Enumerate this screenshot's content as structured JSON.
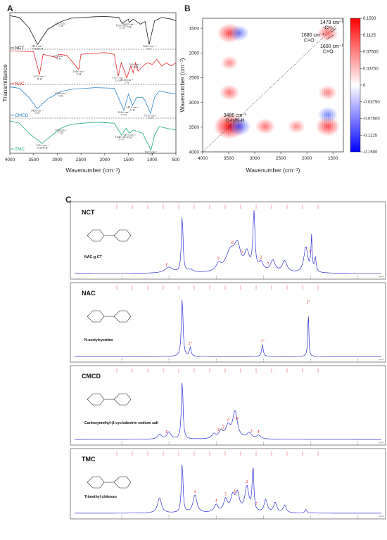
{
  "panels": {
    "A": "A",
    "B": "B",
    "C": "C"
  },
  "chart_data": [
    {
      "type": "line",
      "panel": "A",
      "xlabel": "Wavenumber (cm⁻¹)",
      "ylabel": "Transmittance",
      "xlim": [
        4000,
        500
      ],
      "x_ticks": [
        "4000",
        "3500",
        "3000",
        "2500",
        "2000",
        "1500",
        "1000",
        "500"
      ],
      "series": [
        {
          "name": "NCT",
          "color": "#1a1a1a",
          "points": [
            [
              4000,
              0.95
            ],
            [
              3800,
              0.9
            ],
            [
              3600,
              0.6
            ],
            [
              3415,
              0.1
            ],
            [
              3200,
              0.55
            ],
            [
              2921,
              0.78
            ],
            [
              2700,
              0.88
            ],
            [
              2200,
              0.92
            ],
            [
              2000,
              0.93
            ],
            [
              1700,
              0.9
            ],
            [
              1635,
              0.72
            ],
            [
              1500,
              0.85
            ],
            [
              1487,
              0.75
            ],
            [
              1400,
              0.85
            ],
            [
              1250,
              0.7
            ],
            [
              1150,
              0.78
            ],
            [
              1065,
              0.1
            ],
            [
              950,
              0.8
            ],
            [
              800,
              0.9
            ],
            [
              600,
              0.85
            ],
            [
              500,
              0.8
            ]
          ],
          "annotations": [
            {
              "x": 3415,
              "text": "3415 cm⁻¹ O-H/N-H"
            },
            {
              "x": 2921,
              "text": "2921 cm⁻¹ C-H"
            },
            {
              "x": 1635,
              "text": "1635 cm⁻¹ C=O"
            },
            {
              "x": 1487,
              "text": "1487 cm⁻¹ -CH₃"
            },
            {
              "x": 1065,
              "text": "1065 cm⁻¹ C-O"
            }
          ]
        },
        {
          "name": "NAC",
          "color": "#e8262a",
          "points": [
            [
              4000,
              0.95
            ],
            [
              3500,
              0.93
            ],
            [
              3376,
              0.25
            ],
            [
              3300,
              0.85
            ],
            [
              3000,
              0.75
            ],
            [
              2970,
              0.85
            ],
            [
              2800,
              0.82
            ],
            [
              2548,
              0.4
            ],
            [
              2500,
              0.85
            ],
            [
              2000,
              0.9
            ],
            [
              1800,
              0.85
            ],
            [
              1717,
              0.2
            ],
            [
              1650,
              0.6
            ],
            [
              1536,
              0.15
            ],
            [
              1450,
              0.5
            ],
            [
              1400,
              0.3
            ],
            [
              1350,
              0.6
            ],
            [
              1300,
              0.35
            ],
            [
              1200,
              0.5
            ],
            [
              1100,
              0.6
            ],
            [
              1000,
              0.55
            ],
            [
              900,
              0.7
            ],
            [
              800,
              0.5
            ],
            [
              700,
              0.6
            ],
            [
              600,
              0.5
            ],
            [
              500,
              0.6
            ]
          ],
          "annotations": [
            {
              "x": 3376,
              "text": "3376 cm⁻¹ N-H"
            },
            {
              "x": 2970,
              "text": "2970 cm⁻¹ O-H"
            },
            {
              "x": 2548,
              "text": "2548 cm⁻¹ S-H"
            },
            {
              "x": 1717,
              "text": "1717 cm⁻¹ C=O"
            },
            {
              "x": 1536,
              "text": "1536 cm⁻¹ C-N"
            },
            {
              "x": 1369,
              "text": "1369 cm⁻¹ C-OH"
            }
          ]
        },
        {
          "name": "CMCD",
          "color": "#2a83c8",
          "points": [
            [
              4000,
              0.92
            ],
            [
              3800,
              0.88
            ],
            [
              3600,
              0.6
            ],
            [
              3426,
              0.25
            ],
            [
              3200,
              0.55
            ],
            [
              2924,
              0.78
            ],
            [
              2700,
              0.85
            ],
            [
              2200,
              0.9
            ],
            [
              1800,
              0.88
            ],
            [
              1596,
              0.2
            ],
            [
              1500,
              0.7
            ],
            [
              1416,
              0.35
            ],
            [
              1330,
              0.6
            ],
            [
              1200,
              0.6
            ],
            [
              1150,
              0.5
            ],
            [
              1035,
              0.1
            ],
            [
              950,
              0.6
            ],
            [
              850,
              0.8
            ],
            [
              700,
              0.75
            ],
            [
              500,
              0.7
            ]
          ],
          "annotations": [
            {
              "x": 3426,
              "text": "3426 cm⁻¹ O-H"
            },
            {
              "x": 2924,
              "text": "2924 cm⁻¹ C-H"
            },
            {
              "x": 1596,
              "text": "1596 cm⁻¹ C=O"
            },
            {
              "x": 1416,
              "text": "1416 cm⁻¹ C-H"
            },
            {
              "x": 1035,
              "text": "1035 cm⁻¹ C-O"
            }
          ]
        },
        {
          "name": "TMC",
          "color": "#1fae7a",
          "points": [
            [
              4000,
              0.92
            ],
            [
              3800,
              0.85
            ],
            [
              3600,
              0.55
            ],
            [
              3319,
              0.25
            ],
            [
              3150,
              0.45
            ],
            [
              2924,
              0.7
            ],
            [
              2700,
              0.82
            ],
            [
              2200,
              0.88
            ],
            [
              1800,
              0.85
            ],
            [
              1646,
              0.5
            ],
            [
              1550,
              0.7
            ],
            [
              1479,
              0.55
            ],
            [
              1400,
              0.65
            ],
            [
              1300,
              0.6
            ],
            [
              1200,
              0.55
            ],
            [
              1150,
              0.4
            ],
            [
              1027,
              0.05
            ],
            [
              950,
              0.5
            ],
            [
              850,
              0.75
            ],
            [
              700,
              0.7
            ],
            [
              500,
              0.65
            ]
          ],
          "annotations": [
            {
              "x": 3319,
              "text": "3319 cm⁻¹ O-H/N-H"
            },
            {
              "x": 2924,
              "text": "2924 cm⁻¹ C-H"
            },
            {
              "x": 1646,
              "text": "1646 cm⁻¹ C=O"
            },
            {
              "x": 1479,
              "text": "1479 cm⁻¹ -CH₃"
            },
            {
              "x": 1027,
              "text": "1027 cm⁻¹ C-O"
            }
          ]
        }
      ]
    },
    {
      "type": "heatmap",
      "panel": "B",
      "xlabel": "Wavenumber (cm⁻¹)",
      "ylabel": "Wavenumber (cm⁻¹)",
      "xlim": [
        4000,
        1300
      ],
      "ylim": [
        1300,
        4000
      ],
      "x_ticks": [
        "4000",
        "3500",
        "3000",
        "2500",
        "2000",
        "1500"
      ],
      "y_ticks": [
        "1500",
        "2000",
        "2500",
        "3000",
        "3500",
        "4000"
      ],
      "colorbar": {
        "min": -0.15,
        "max": 0.15,
        "ticks": [
          "0.1500",
          "0.1125",
          "0.07500",
          "0.03750",
          "0",
          "-0.03750",
          "-0.07500",
          "-0.1125",
          "-0.1500"
        ]
      },
      "blobs": [
        {
          "x": 3486,
          "y": 3486,
          "value": 0.15
        },
        {
          "x": 3486,
          "y": 1600,
          "value": 0.09
        },
        {
          "x": 1600,
          "y": 3486,
          "value": 0.09
        },
        {
          "x": 1600,
          "y": 1600,
          "value": 0.06
        },
        {
          "x": 3486,
          "y": 2800,
          "value": 0.05
        },
        {
          "x": 2800,
          "y": 3486,
          "value": 0.05
        },
        {
          "x": 3486,
          "y": 2200,
          "value": 0.03
        },
        {
          "x": 2200,
          "y": 3486,
          "value": 0.03
        },
        {
          "x": 1600,
          "y": 2800,
          "value": 0.04
        },
        {
          "x": 1600,
          "y": 3250,
          "value": -0.05
        },
        {
          "x": 3300,
          "y": 3486,
          "value": -0.08
        },
        {
          "x": 3300,
          "y": 1600,
          "value": -0.05
        }
      ],
      "annotations": [
        {
          "text1": "1479 cm⁻¹",
          "text2": "-CH₃"
        },
        {
          "text1": "1680 cm⁻¹",
          "text2": "C=O"
        },
        {
          "text1": "1600 cm⁻¹",
          "text2": "C=O"
        },
        {
          "text1": "3486 cm⁻¹",
          "text2": "O-H/N-H"
        }
      ]
    },
    {
      "type": "line",
      "panel": "C",
      "xunit": "[ppm]",
      "x_ticks": [
        "6",
        "5",
        "4",
        "3",
        "2",
        "1"
      ],
      "xlim": [
        7.0,
        0.5
      ],
      "spectra": [
        {
          "name": "NCT",
          "molecule_name": "NAC-g-CT",
          "peaks": [
            [
              5.0,
              0.1,
              0.1
            ],
            [
              4.72,
              1.0,
              0.02
            ],
            [
              4.55,
              0.05,
              0.08
            ],
            [
              3.95,
              0.12,
              0.06
            ],
            [
              3.7,
              0.35,
              0.12
            ],
            [
              3.55,
              0.4,
              0.08
            ],
            [
              3.35,
              0.3,
              0.06
            ],
            [
              3.2,
              1.0,
              0.025
            ],
            [
              3.05,
              0.15,
              0.06
            ],
            [
              2.8,
              0.2,
              0.06
            ],
            [
              2.55,
              0.2,
              0.06
            ],
            [
              2.1,
              0.45,
              0.05
            ],
            [
              1.98,
              0.6,
              0.015
            ],
            [
              1.9,
              0.25,
              0.02
            ]
          ],
          "labels": [
            {
              "x": 5.05,
              "text": "1'"
            },
            {
              "x": 3.95,
              "text": "5'"
            },
            {
              "x": 3.65,
              "text": "6'"
            },
            {
              "x": 3.45,
              "text": "5"
            },
            {
              "x": 3.05,
              "text": "2"
            },
            {
              "x": 2.9,
              "text": "7"
            },
            {
              "x": 2.0,
              "text": "1''"
            }
          ]
        },
        {
          "name": "NAC",
          "molecule_name": "N-acetylcysteine",
          "peaks": [
            [
              4.72,
              1.0,
              0.02
            ],
            [
              4.55,
              0.15,
              0.02
            ],
            [
              3.02,
              0.2,
              0.02
            ],
            [
              2.05,
              0.85,
              0.012
            ]
          ],
          "labels": [
            {
              "x": 4.55,
              "text": "2''"
            },
            {
              "x": 3.02,
              "text": "3''"
            },
            {
              "x": 2.05,
              "text": "1''"
            }
          ]
        },
        {
          "name": "CMCD",
          "molecule_name": "Carboxymethyl-β-cyclodextrin sodium salt",
          "peaks": [
            [
              5.2,
              0.08,
              0.05
            ],
            [
              5.0,
              0.12,
              0.05
            ],
            [
              4.72,
              1.0,
              0.02
            ],
            [
              4.05,
              0.08,
              0.05
            ],
            [
              3.9,
              0.12,
              0.05
            ],
            [
              3.75,
              0.2,
              0.06
            ],
            [
              3.6,
              0.45,
              0.06
            ],
            [
              3.3,
              0.1,
              0.06
            ],
            [
              3.1,
              0.06,
              0.05
            ]
          ],
          "labels": [
            {
              "x": 5.05,
              "text": "1'"
            },
            {
              "x": 3.95,
              "text": "3'"
            },
            {
              "x": 3.75,
              "text": "2'"
            },
            {
              "x": 3.85,
              "text": "5'"
            },
            {
              "x": 3.55,
              "text": "6'"
            },
            {
              "x": 3.25,
              "text": "3'"
            },
            {
              "x": 3.1,
              "text": "4'"
            }
          ]
        },
        {
          "name": "TMC",
          "molecule_name": "Trimethyl chitosan",
          "peaks": [
            [
              5.2,
              0.3,
              0.05
            ],
            [
              4.72,
              1.0,
              0.02
            ],
            [
              4.45,
              0.35,
              0.05
            ],
            [
              4.0,
              0.15,
              0.05
            ],
            [
              3.8,
              0.25,
              0.05
            ],
            [
              3.65,
              0.3,
              0.05
            ],
            [
              3.55,
              0.35,
              0.05
            ],
            [
              3.35,
              0.5,
              0.05
            ],
            [
              3.22,
              0.9,
              0.02
            ],
            [
              2.95,
              0.25,
              0.04
            ],
            [
              2.75,
              0.2,
              0.04
            ],
            [
              2.55,
              0.15,
              0.04
            ],
            [
              2.1,
              0.08,
              0.02
            ]
          ],
          "labels": [
            {
              "x": 4.45,
              "text": "3"
            },
            {
              "x": 4.0,
              "text": "4"
            },
            {
              "x": 3.8,
              "text": "5"
            },
            {
              "x": 3.6,
              "text": "6"
            },
            {
              "x": 3.35,
              "text": "2"
            },
            {
              "x": 3.15,
              "text": "7"
            }
          ]
        }
      ]
    }
  ]
}
